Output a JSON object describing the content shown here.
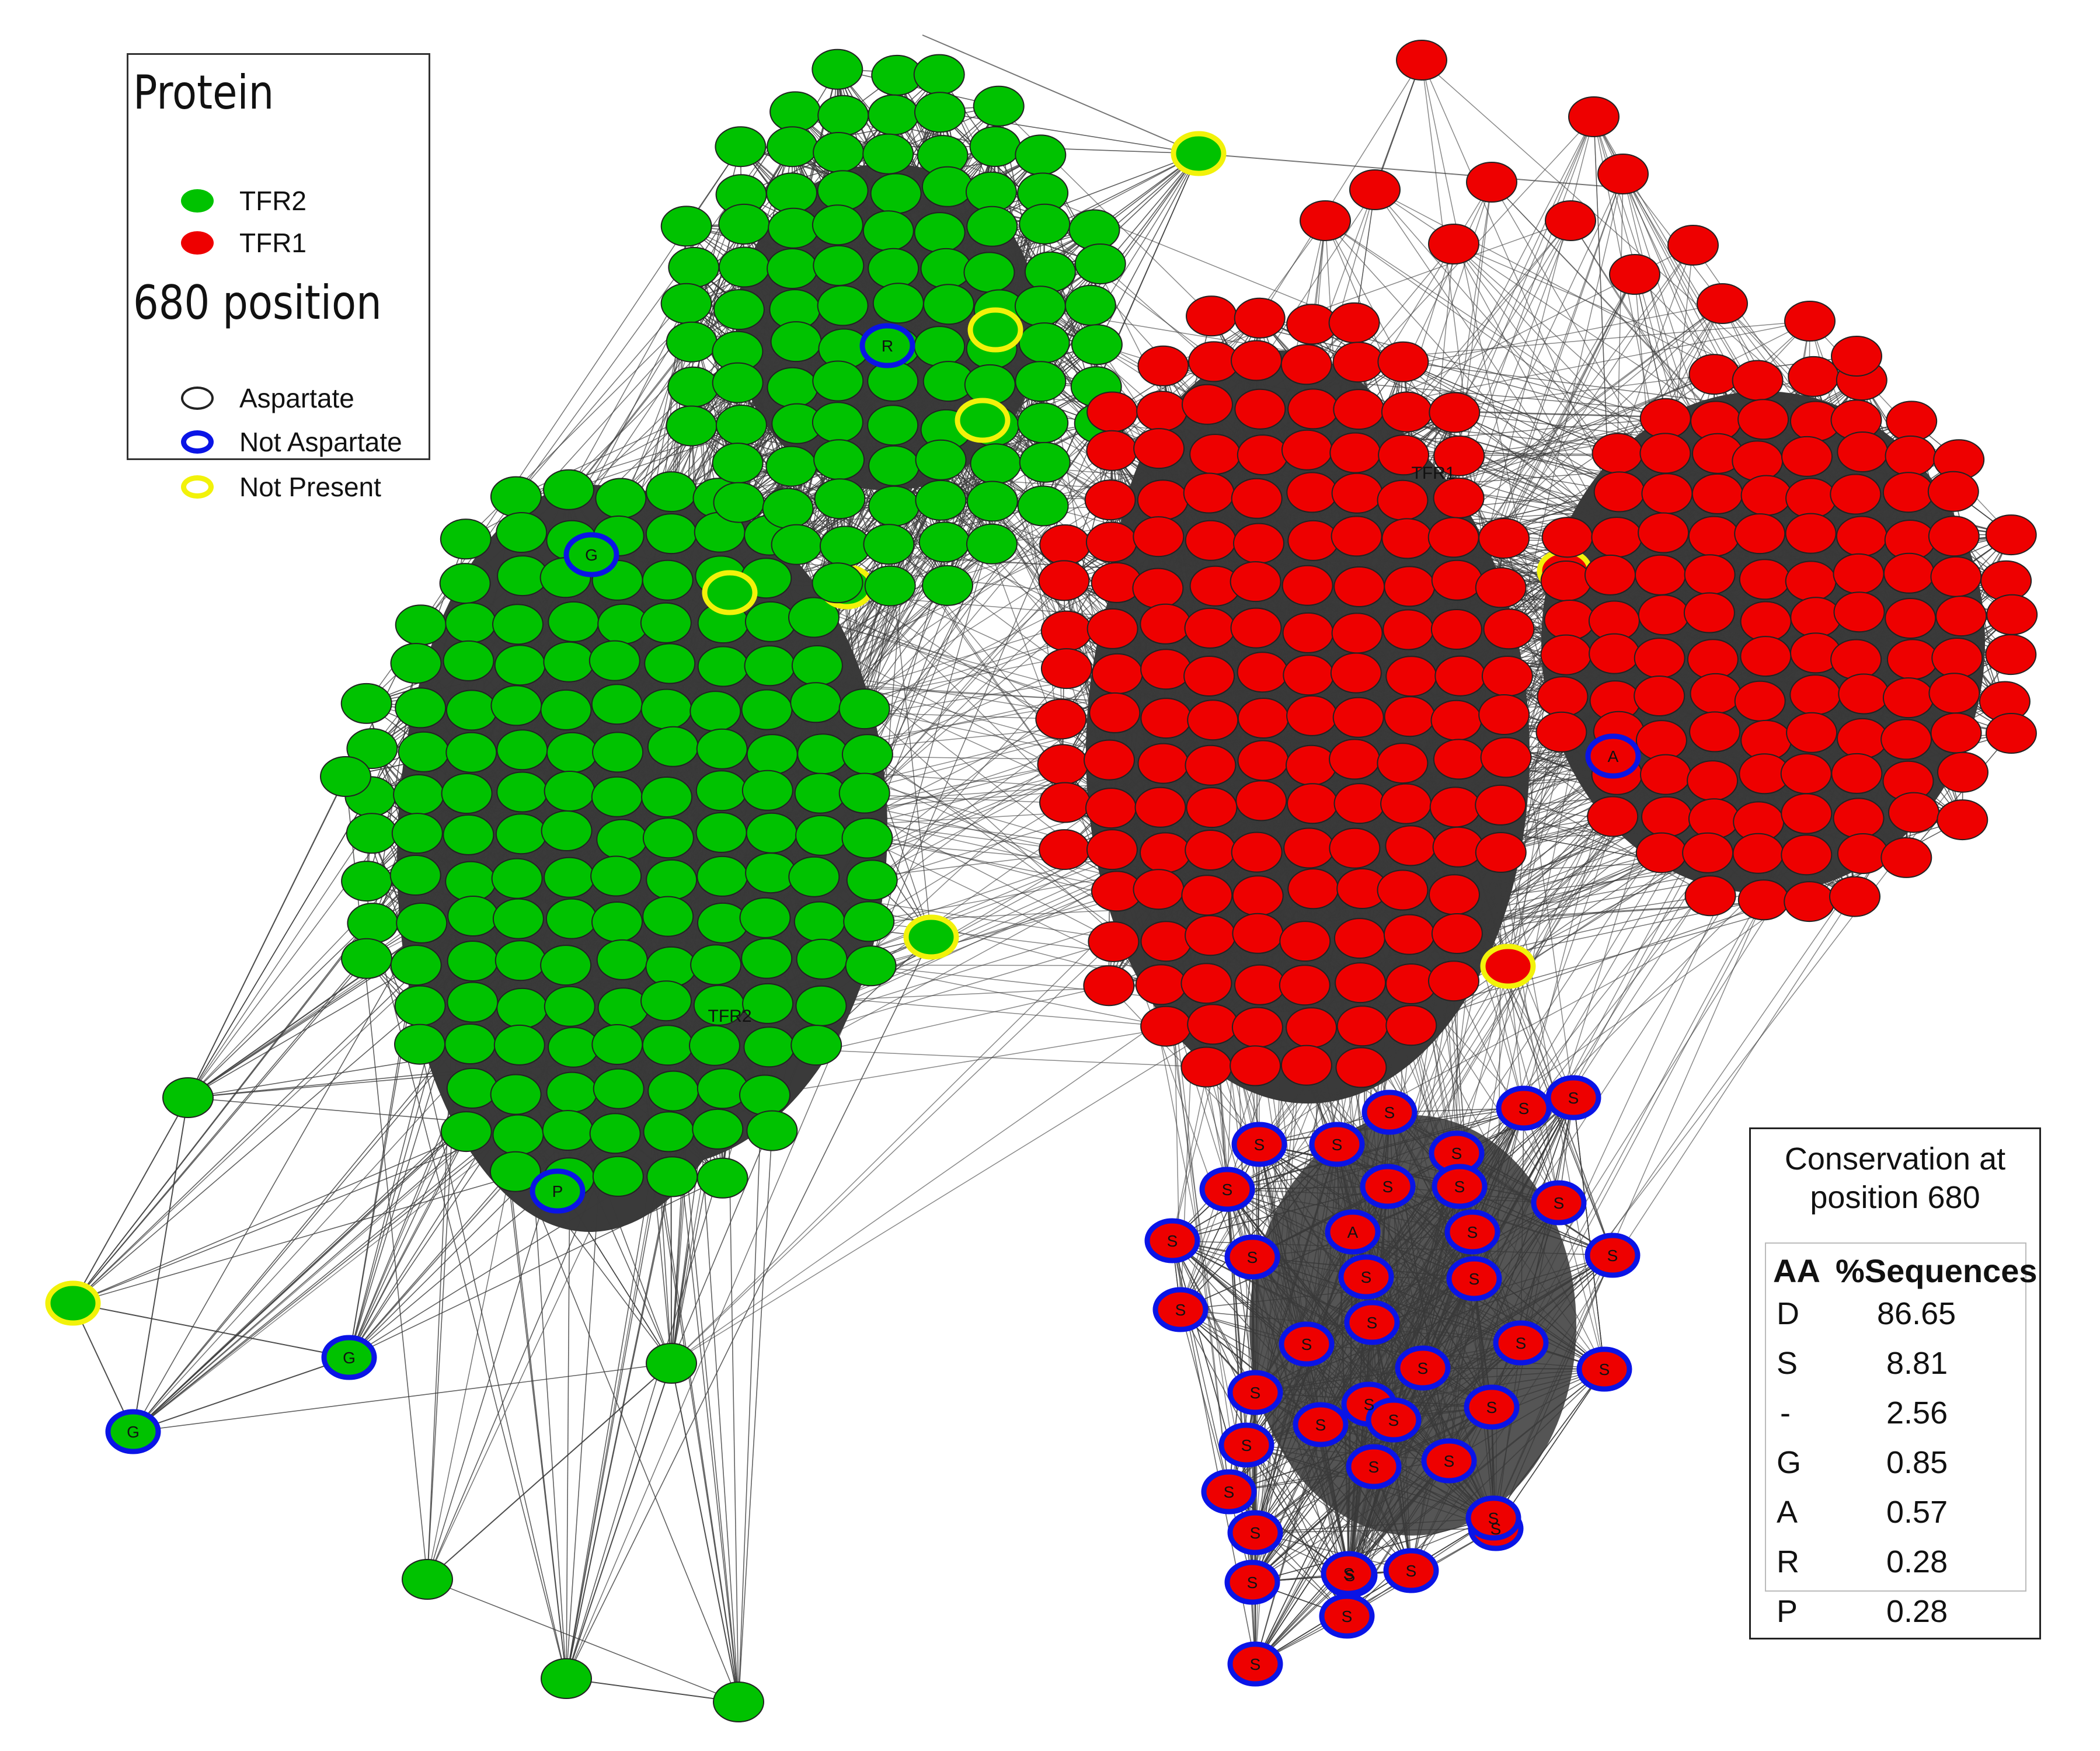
{
  "legend": {
    "protein_title": "Protein",
    "protein_items": [
      {
        "label": "TFR2",
        "color": "#00c200"
      },
      {
        "label": "TFR1",
        "color": "#ee0000"
      }
    ],
    "position_title": "680 position",
    "position_items": [
      {
        "label": "Aspartate",
        "border": "#222222"
      },
      {
        "label": "Not Aspartate",
        "border": "#0a14e6"
      },
      {
        "label": "Not Present",
        "border": "#f2f20a"
      }
    ]
  },
  "network": {
    "cluster_labels": [
      {
        "text": "TFR2",
        "cluster": "tfr2-main"
      },
      {
        "text": "TFR1",
        "cluster": "tfr1-main"
      }
    ],
    "node_labels": [
      "R",
      "G",
      "P",
      "G",
      "G",
      "A",
      "S",
      "A"
    ]
  },
  "conservation": {
    "title_line1": "Conservation at",
    "title_line2": "position 680",
    "col_aa": "AA",
    "col_pct": "%Sequences",
    "rows": [
      {
        "aa": "D",
        "pct": "86.65"
      },
      {
        "aa": "S",
        "pct": "8.81"
      },
      {
        "aa": "-",
        "pct": "2.56"
      },
      {
        "aa": "G",
        "pct": "0.85"
      },
      {
        "aa": "A",
        "pct": "0.57"
      },
      {
        "aa": "R",
        "pct": "0.28"
      },
      {
        "aa": "P",
        "pct": "0.28"
      }
    ]
  },
  "colors": {
    "tfr2": "#00c200",
    "tfr1": "#ee0000",
    "edge": "#3a3a3a",
    "aspartate_border": "#222222",
    "not_aspartate_border": "#0a14e6",
    "not_present_border": "#f2f20a"
  }
}
